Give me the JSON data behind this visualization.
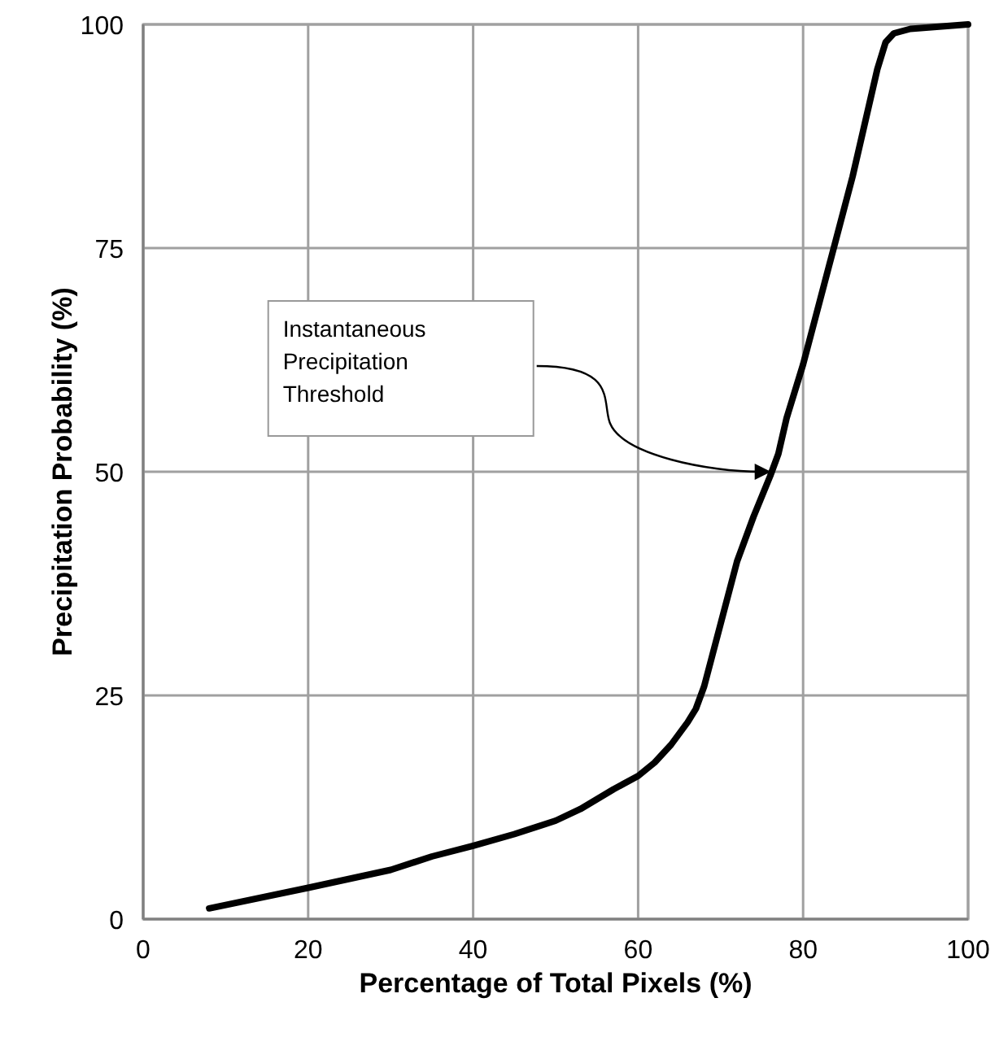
{
  "chart_data": {
    "type": "line",
    "xlabel": "Percentage of Total Pixels (%)",
    "ylabel": "Precipitation Probability (%)",
    "x": [
      8,
      20,
      30,
      35,
      40,
      45,
      50,
      53,
      57,
      60,
      62,
      64,
      66,
      67,
      68,
      70,
      72,
      74,
      76,
      77,
      78,
      80,
      82,
      84,
      86,
      88,
      89,
      90,
      91,
      93,
      100
    ],
    "series": [
      {
        "color": "#000000",
        "values": [
          1.2,
          3.5,
          5.5,
          7,
          8.2,
          9.5,
          11,
          12.3,
          14.5,
          16,
          17.5,
          19.5,
          22,
          23.5,
          26,
          33,
          40,
          45,
          49.5,
          52,
          56,
          62,
          69,
          76,
          83,
          91,
          95,
          98,
          99,
          99.5,
          100
        ]
      }
    ],
    "xlim": [
      0,
      100
    ],
    "xticks": [
      0,
      20,
      40,
      60,
      80,
      100
    ],
    "ylim": [
      0,
      100
    ],
    "yticks": [
      0,
      25,
      50,
      75,
      100
    ],
    "grid": true,
    "marker": "none",
    "line_style": "solid",
    "annotations": [
      "Instantaneous Precipitation Threshold"
    ]
  }
}
